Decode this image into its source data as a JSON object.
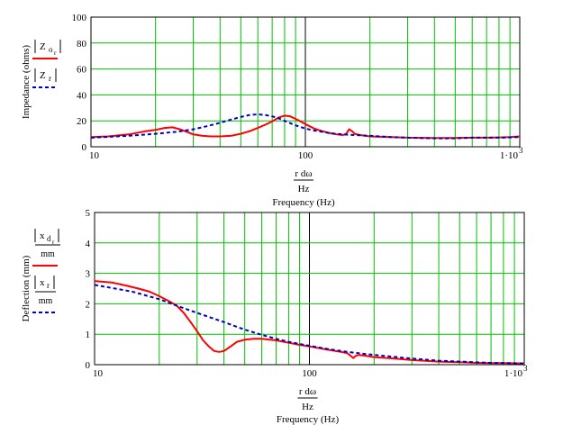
{
  "colors": {
    "grid": "#00c000",
    "series1": "#ff0000",
    "series2": "#0000c0",
    "frame": "#000000"
  },
  "chart_data": [
    {
      "type": "line",
      "x_scale": "log",
      "xlim": [
        10,
        1000
      ],
      "ylim": [
        0,
        100
      ],
      "ytick_labels": [
        "0",
        "20",
        "40",
        "60",
        "80",
        "100"
      ],
      "xtick_labels": [
        "10",
        "100",
        "1·10"
      ],
      "xtick_exp": "3",
      "xlabel_expr": {
        "num": "r dω",
        "den": "Hz"
      },
      "xlabel": "Frequency (Hz)",
      "ylabel": "Impedance (ohms)",
      "legend": [
        {
          "expr": "Z",
          "sub": "o",
          "subsub": "r"
        },
        {
          "expr": "Z",
          "sub": "r"
        }
      ],
      "series": [
        {
          "style": "solid-red",
          "x": [
            10,
            12,
            15,
            18,
            20,
            22,
            24,
            26,
            28,
            30,
            33,
            36,
            40,
            45,
            50,
            55,
            60,
            65,
            70,
            75,
            80,
            85,
            90,
            95,
            100,
            110,
            120,
            130,
            140,
            150,
            155,
            160,
            165,
            170,
            180,
            200,
            250,
            300,
            400,
            500,
            600,
            700,
            800,
            900,
            1000
          ],
          "values": [
            7.5,
            8,
            9.5,
            12,
            13,
            14.5,
            15,
            13.5,
            11.5,
            9.5,
            8.5,
            8,
            8,
            8.5,
            10,
            12,
            14.5,
            17,
            19.5,
            22.5,
            24,
            23.5,
            21.5,
            19.5,
            17.5,
            14,
            12,
            10.5,
            9.5,
            9,
            10,
            13.5,
            12,
            10,
            9,
            8,
            7.5,
            7,
            6.8,
            6.8,
            7,
            7,
            7.2,
            7.5,
            8
          ]
        },
        {
          "style": "dashed-blue",
          "x": [
            10,
            15,
            20,
            25,
            30,
            35,
            40,
            45,
            50,
            55,
            60,
            65,
            70,
            75,
            80,
            90,
            100,
            110,
            120,
            130,
            150,
            170,
            200,
            250,
            300,
            400,
            500,
            600,
            700,
            800,
            900,
            1000
          ],
          "values": [
            7,
            8.5,
            10,
            11.5,
            13.5,
            16,
            18.5,
            21,
            23,
            24.5,
            25,
            24.5,
            23.5,
            22,
            20,
            16.5,
            14,
            12.5,
            11.5,
            10.5,
            9.5,
            9,
            8.5,
            7.5,
            7,
            6.5,
            6.5,
            7,
            7,
            7,
            7.2,
            7.5
          ]
        }
      ]
    },
    {
      "type": "line",
      "x_scale": "log",
      "xlim": [
        10,
        1000
      ],
      "ylim": [
        0,
        5
      ],
      "ytick_labels": [
        "0",
        "1",
        "2",
        "3",
        "4",
        "5"
      ],
      "xtick_labels": [
        "10",
        "100",
        "1·10"
      ],
      "xtick_exp": "3",
      "xlabel_expr": {
        "num": "r dω",
        "den": "Hz"
      },
      "xlabel": "Frequency (Hz)",
      "ylabel": "Deflection (mm)",
      "legend": [
        {
          "expr": "x",
          "sub": "d",
          "subsub": "r",
          "den": "mm"
        },
        {
          "expr": "x",
          "sub": "r",
          "den": "mm"
        }
      ],
      "series": [
        {
          "style": "solid-red",
          "x": [
            10,
            12,
            14,
            16,
            18,
            20,
            22,
            24,
            26,
            28,
            30,
            32,
            34,
            36,
            38,
            40,
            43,
            46,
            50,
            55,
            60,
            70,
            80,
            90,
            100,
            120,
            140,
            150,
            155,
            160,
            165,
            170,
            180,
            200,
            250,
            300,
            400,
            500,
            600,
            700,
            800,
            1000
          ],
          "values": [
            2.75,
            2.7,
            2.6,
            2.5,
            2.4,
            2.25,
            2.1,
            1.95,
            1.7,
            1.4,
            1.1,
            0.8,
            0.6,
            0.45,
            0.42,
            0.45,
            0.6,
            0.75,
            0.82,
            0.85,
            0.85,
            0.8,
            0.72,
            0.65,
            0.6,
            0.5,
            0.42,
            0.38,
            0.3,
            0.22,
            0.3,
            0.32,
            0.3,
            0.25,
            0.2,
            0.15,
            0.1,
            0.08,
            0.06,
            0.05,
            0.05,
            0.04
          ]
        },
        {
          "style": "dashed-blue",
          "x": [
            10,
            15,
            20,
            25,
            30,
            40,
            50,
            60,
            70,
            80,
            90,
            100,
            120,
            150,
            200,
            300,
            400,
            500,
            700,
            1000
          ],
          "values": [
            2.62,
            2.4,
            2.15,
            1.9,
            1.7,
            1.4,
            1.15,
            0.98,
            0.85,
            0.75,
            0.68,
            0.62,
            0.52,
            0.42,
            0.32,
            0.2,
            0.13,
            0.1,
            0.06,
            0.04
          ]
        }
      ]
    }
  ]
}
